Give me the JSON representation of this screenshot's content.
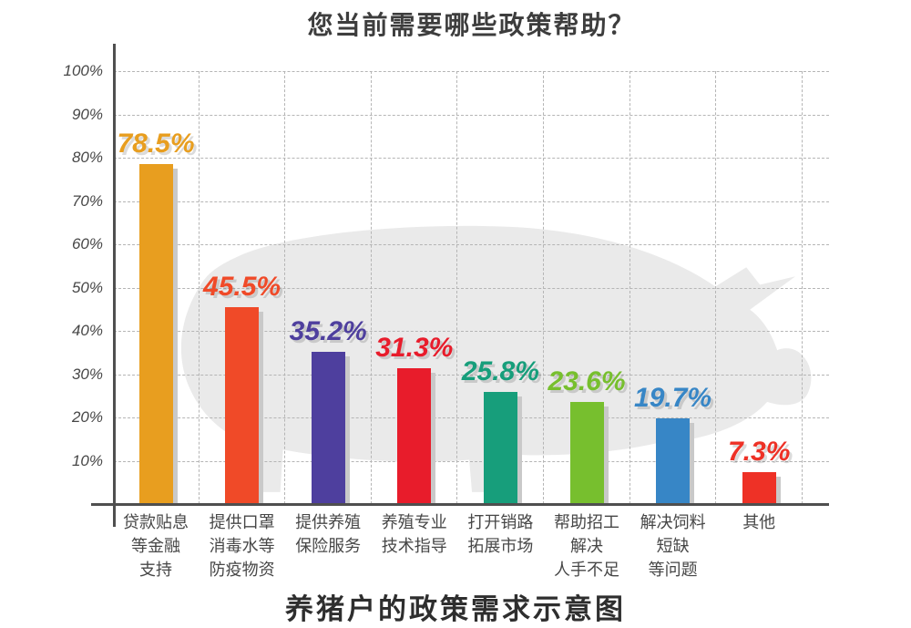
{
  "page": {
    "title": "您当前需要哪些政策帮助？",
    "caption": "养猪户的政策需求示意图"
  },
  "colors": {
    "axis": "#4f4f4f",
    "grid": "#b5b5b5",
    "pig_silhouette": "#eaeaea",
    "bar_shadow": "#c9c9c9",
    "tick_label": "#474747",
    "category_label": "#474747",
    "title_text": "#3d3d3d"
  },
  "chart_data": {
    "type": "bar",
    "title": "您当前需要哪些政策帮助？",
    "caption": "养猪户的政策需求示意图",
    "categories": [
      "贷款贴息\n等金融\n支持",
      "提供口罩\n消毒水等\n防疫物资",
      "提供养殖\n保险服务",
      "养殖专业\n技术指导",
      "打开销路\n拓展市场",
      "帮助招工\n解决\n人手不足",
      "解决饲料\n短缺\n等问题",
      "其他"
    ],
    "values": [
      78.5,
      45.5,
      35.2,
      31.3,
      25.8,
      23.6,
      19.7,
      7.3
    ],
    "value_labels": [
      "78.5%",
      "45.5%",
      "35.2%",
      "31.3%",
      "25.8%",
      "23.6%",
      "19.7%",
      "7.3%"
    ],
    "bar_colors": [
      "#e89e1f",
      "#f04a28",
      "#4e3f9e",
      "#e81c2b",
      "#179e7b",
      "#77bf2e",
      "#3786c6",
      "#ee3126"
    ],
    "y_ticks": [
      "10%",
      "20%",
      "30%",
      "40%",
      "50%",
      "60%",
      "70%",
      "80%",
      "90%",
      "100%"
    ],
    "y_tick_values": [
      10,
      20,
      30,
      40,
      50,
      60,
      70,
      80,
      90,
      100
    ],
    "ylim": [
      0,
      100
    ],
    "grid": "dashed",
    "legend": "none",
    "xlabel": "",
    "ylabel": "",
    "background_watermark": "pig-silhouette"
  }
}
